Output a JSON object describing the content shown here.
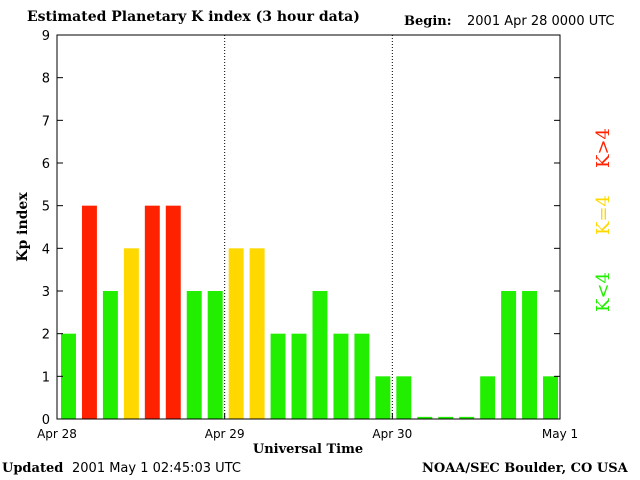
{
  "header": {
    "title": "Estimated Planetary K index (3 hour data)",
    "begin_label": "Begin:",
    "begin_value": "2001 Apr 28 0000 UTC"
  },
  "footer": {
    "updated_label": "Updated",
    "updated_value": "2001 May  1 02:45:03 UTC",
    "credit": "NOAA/SEC Boulder, CO USA"
  },
  "legend": [
    {
      "label": "K>4",
      "color": "#ff2200"
    },
    {
      "label": "K=4",
      "color": "#ffd800"
    },
    {
      "label": "K<4",
      "color": "#22ee00"
    }
  ],
  "colors": {
    "k_gt_4": "#ff2200",
    "k_eq_4": "#ffd800",
    "k_lt_4": "#22ee00",
    "day_divider": "#000000"
  },
  "chart_data": {
    "type": "bar",
    "title": "Estimated Planetary K index (3 hour data)",
    "xlabel": "Universal Time",
    "ylabel": "Kp index",
    "ylim": [
      0,
      9
    ],
    "yticks": [
      "0",
      "1",
      "2",
      "3",
      "4",
      "5",
      "6",
      "7",
      "8",
      "9"
    ],
    "xticks": [
      "Apr 28",
      "Apr 29",
      "Apr 30",
      "May 1"
    ],
    "interval_hours": 3,
    "values": [
      2,
      5,
      3,
      4,
      5,
      5,
      3,
      3,
      4,
      4,
      2,
      2,
      3,
      2,
      2,
      1,
      1,
      0.05,
      0.05,
      0.05,
      1,
      3,
      3,
      1
    ],
    "grid": false,
    "day_dividers": true,
    "legend_position": "right"
  }
}
